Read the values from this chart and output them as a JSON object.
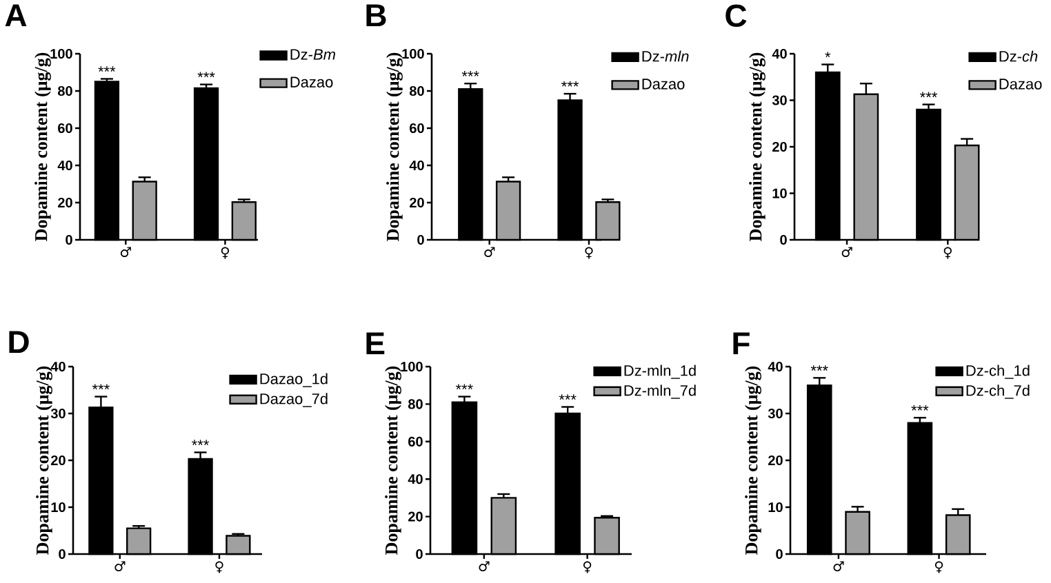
{
  "chart_data": [
    {
      "type": "bar",
      "title": "A",
      "ylabel": "Dopamine content (μg/g)",
      "categories": [
        "♂",
        "♀"
      ],
      "series": [
        {
          "name": "Dz-*Bm*",
          "color": "#000000",
          "values": [
            85,
            81.5
          ],
          "errors": [
            1.5,
            2
          ]
        },
        {
          "name": "Dazao",
          "color": "#a0a0a0",
          "values": [
            31.3,
            20.3
          ],
          "errors": [
            2.3,
            1.4
          ]
        }
      ],
      "ylim": [
        0,
        100
      ],
      "yticks": [
        0,
        20,
        40,
        60,
        80,
        100
      ],
      "legend": "top right",
      "annotations": [
        "***",
        "***"
      ]
    },
    {
      "type": "bar",
      "title": "B",
      "ylabel": "Dopamine content (μg/g)",
      "categories": [
        "♂",
        "♀"
      ],
      "series": [
        {
          "name": "Dz-*mln*",
          "color": "#000000",
          "values": [
            81,
            75
          ],
          "errors": [
            3,
            3.5
          ]
        },
        {
          "name": "Dazao",
          "color": "#a0a0a0",
          "values": [
            31.3,
            20.3
          ],
          "errors": [
            2.3,
            1.4
          ]
        }
      ],
      "ylim": [
        0,
        100
      ],
      "yticks": [
        0,
        20,
        40,
        60,
        80,
        100
      ],
      "legend": "top right",
      "annotations": [
        "***",
        "***"
      ]
    },
    {
      "type": "bar",
      "title": "C",
      "ylabel": "Dopamine content (μg/g)",
      "categories": [
        "♂",
        "♀"
      ],
      "series": [
        {
          "name": "Dz-*ch*",
          "color": "#000000",
          "values": [
            36,
            28
          ],
          "errors": [
            1.7,
            1.1
          ]
        },
        {
          "name": "Dazao",
          "color": "#a0a0a0",
          "values": [
            31.3,
            20.3
          ],
          "errors": [
            2.3,
            1.4
          ]
        }
      ],
      "ylim": [
        0,
        40
      ],
      "yticks": [
        0,
        10,
        20,
        30,
        40
      ],
      "legend": "top right",
      "annotations": [
        "*",
        "***"
      ]
    },
    {
      "type": "bar",
      "title": "D",
      "ylabel": "Dopamine content (μg/g)",
      "categories": [
        "♂",
        "♀"
      ],
      "series": [
        {
          "name": "Dazao_1d",
          "color": "#000000",
          "values": [
            31.3,
            20.3
          ],
          "errors": [
            2.3,
            1.4
          ]
        },
        {
          "name": "Dazao_7d",
          "color": "#a0a0a0",
          "values": [
            5.5,
            3.9
          ],
          "errors": [
            0.5,
            0.4
          ]
        }
      ],
      "ylim": [
        0,
        40
      ],
      "yticks": [
        0,
        10,
        20,
        30,
        40
      ],
      "legend": "top right",
      "annotations": [
        "***",
        "***"
      ]
    },
    {
      "type": "bar",
      "title": "E",
      "ylabel": "Dopamine content (μg/g)",
      "categories": [
        "♂",
        "♀"
      ],
      "series": [
        {
          "name": "Dz-mln_1d",
          "color": "#000000",
          "values": [
            81,
            75
          ],
          "errors": [
            3,
            3.5
          ]
        },
        {
          "name": "Dz-mln_7d",
          "color": "#a0a0a0",
          "values": [
            30,
            19.4
          ],
          "errors": [
            2,
            0.9
          ]
        }
      ],
      "ylim": [
        0,
        100
      ],
      "yticks": [
        0,
        20,
        40,
        60,
        80,
        100
      ],
      "legend": "top right",
      "annotations": [
        "***",
        "***"
      ]
    },
    {
      "type": "bar",
      "title": "F",
      "ylabel": "Dopamine content (μg/g)",
      "categories": [
        "♂",
        "♀"
      ],
      "series": [
        {
          "name": "Dz-ch_1d",
          "color": "#000000",
          "values": [
            36,
            28
          ],
          "errors": [
            1.6,
            1.1
          ]
        },
        {
          "name": "Dz-ch_7d",
          "color": "#a0a0a0",
          "values": [
            9,
            8.3
          ],
          "errors": [
            1.1,
            1.3
          ]
        }
      ],
      "ylim": [
        0,
        40
      ],
      "yticks": [
        0,
        10,
        20,
        30,
        40
      ],
      "legend": "top right",
      "annotations": [
        "***",
        "***"
      ]
    }
  ]
}
